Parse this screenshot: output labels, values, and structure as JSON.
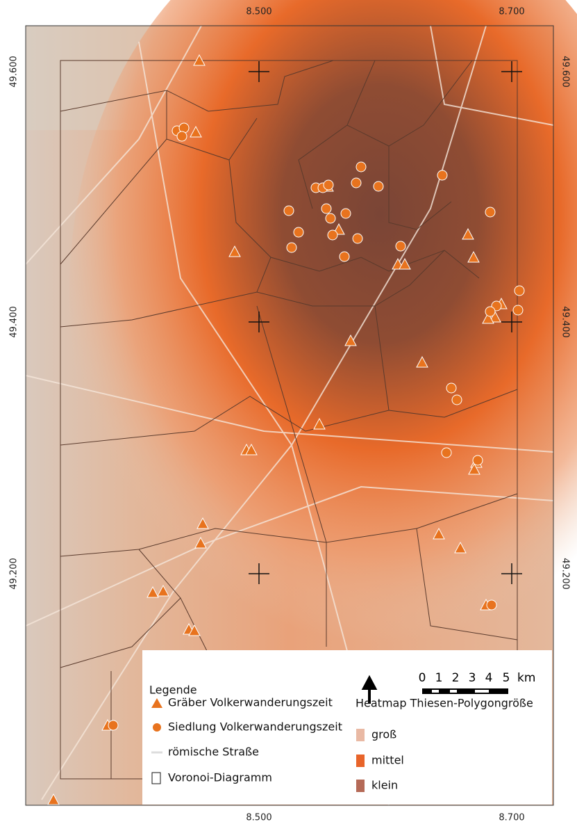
{
  "axes": {
    "top": [
      "8.500",
      "8.700"
    ],
    "bottom": [
      "8.500",
      "8.700"
    ],
    "left": [
      "49.600",
      "49.400",
      "49.200"
    ],
    "right": [
      "49.600",
      "49.400",
      "49.200"
    ]
  },
  "legend": {
    "title": "Legende",
    "items": [
      "Gräber Volkerwanderungszeit",
      "Siedlung Volkerwanderungszeit",
      "römische Straße",
      "Voronoi-Diagramm"
    ]
  },
  "heatmap": {
    "title": "Heatmap Thiesen-Polygongröße",
    "classes": [
      "groß",
      "mittel",
      "klein"
    ]
  },
  "scale": {
    "ticks": [
      "0",
      "1",
      "2",
      "3",
      "4",
      "5"
    ],
    "unit": "km"
  }
}
